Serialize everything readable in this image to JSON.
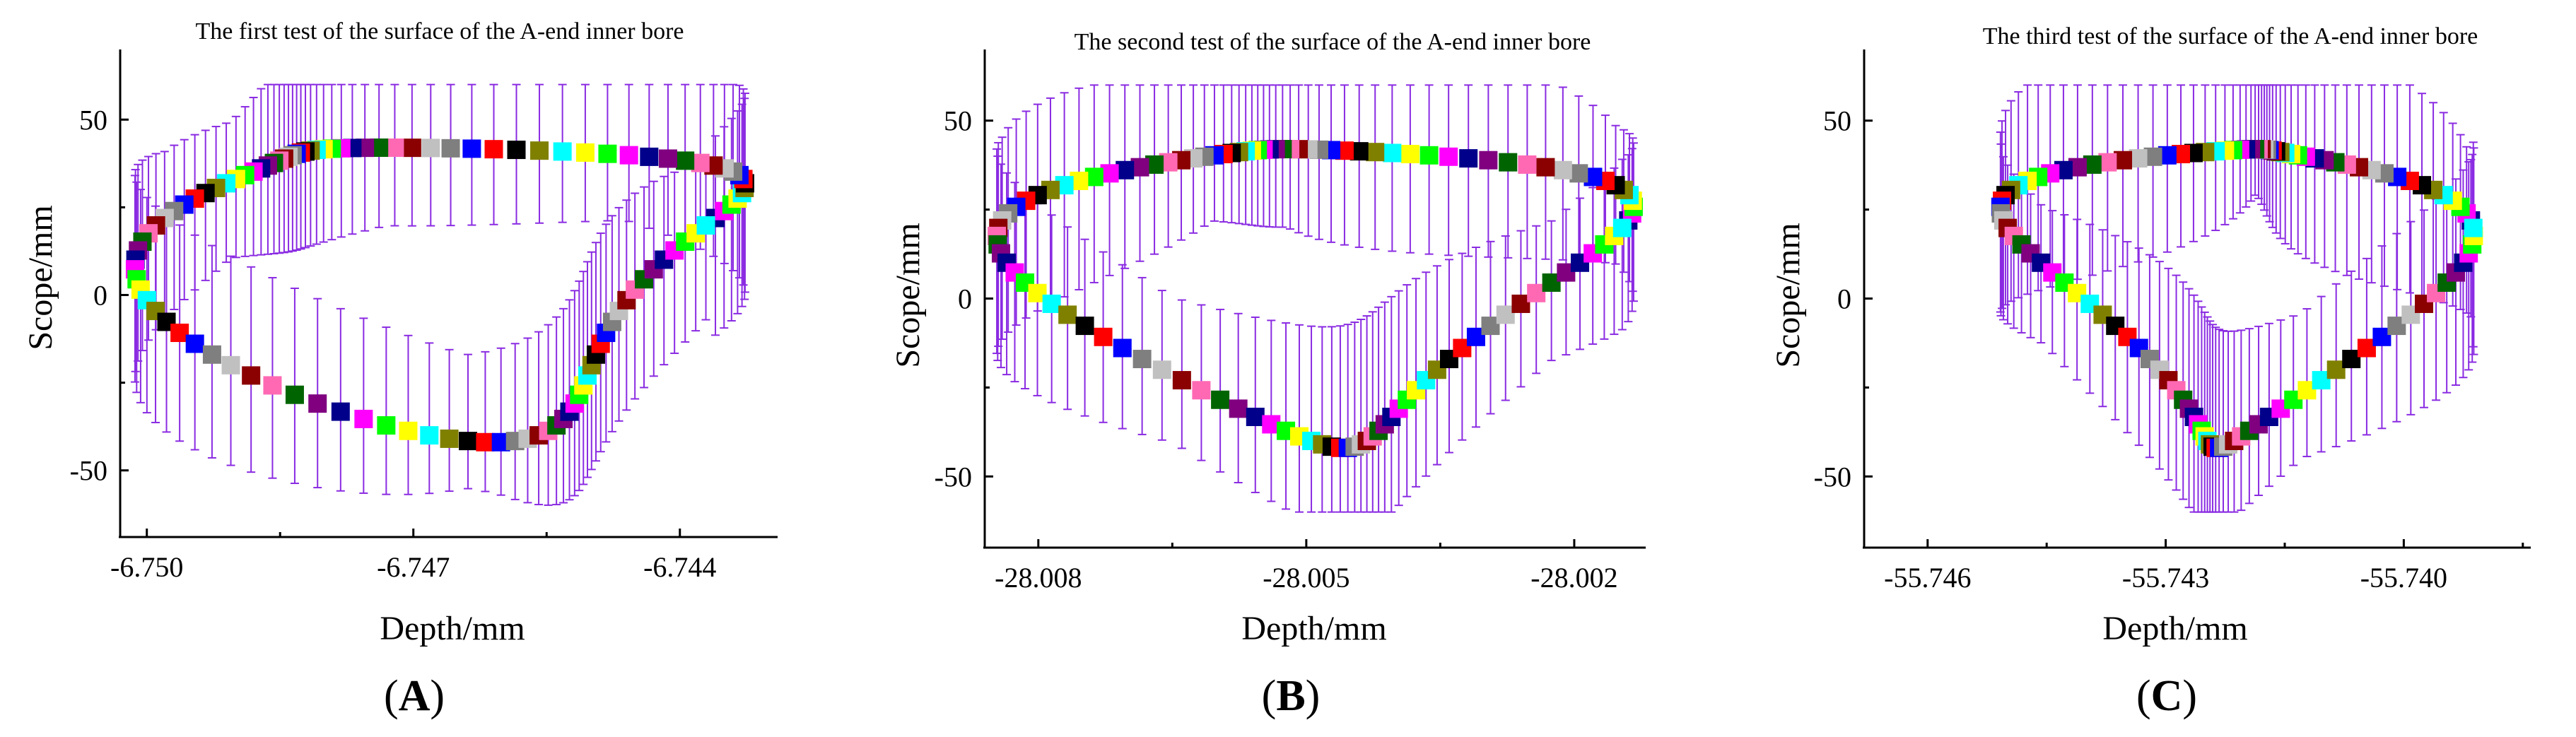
{
  "chart_data": [
    {
      "type": "scatter",
      "panel_label": "A",
      "title": "The first test of the surface of the A-end inner bore",
      "xlabel": "Depth/mm",
      "ylabel": "Scope/mm",
      "xlim": [
        -6.7503,
        -6.7429
      ],
      "ylim": [
        -69,
        70
      ],
      "xticks": [
        {
          "value": -6.75,
          "label": "-6.750"
        },
        {
          "value": -6.747,
          "label": "-6.747"
        },
        {
          "value": -6.744,
          "label": "-6.744"
        }
      ],
      "yticks": [
        {
          "value": 50,
          "label": "50"
        },
        {
          "value": 0,
          "label": "0"
        },
        {
          "value": -50,
          "label": "-50"
        }
      ],
      "ellipse": {
        "x_center": -6.7467,
        "x_radius": 0.0031,
        "y_center": 0,
        "y_radius": 42
      },
      "error_bar": {
        "half_range": 18,
        "cap_upper": 60,
        "cap_lower": -60
      }
    },
    {
      "type": "scatter",
      "panel_label": "B",
      "title": "The second test of the surface of the A-end inner bore",
      "xlabel": "Depth/mm",
      "ylabel": "Scope/mm",
      "xlim": [
        -28.0086,
        -28.0012
      ],
      "ylim": [
        -70,
        70
      ],
      "xticks": [
        {
          "value": -28.008,
          "label": "-28.008"
        },
        {
          "value": -28.005,
          "label": "-28.005"
        },
        {
          "value": -28.002,
          "label": "-28.002"
        }
      ],
      "yticks": [
        {
          "value": 50,
          "label": "50"
        },
        {
          "value": 0,
          "label": "0"
        },
        {
          "value": -50,
          "label": "-50"
        }
      ],
      "ellipse": {
        "x_center": -28.0049,
        "x_radius": 0.003,
        "y_center": 0,
        "y_radius": 42
      },
      "error_bar": {
        "half_range": 18,
        "cap_upper": 60,
        "cap_lower": -60
      }
    },
    {
      "type": "scatter",
      "panel_label": "C",
      "title": "The third test of the surface of the A-end inner bore",
      "xlabel": "Depth/mm",
      "ylabel": "Scope/mm",
      "xlim": [
        -55.7468,
        -55.7384
      ],
      "ylim": [
        -70,
        70
      ],
      "xticks": [
        {
          "value": -55.746,
          "label": "-55.746"
        },
        {
          "value": -55.743,
          "label": "-55.743"
        },
        {
          "value": -55.74,
          "label": "-55.740"
        }
      ],
      "yticks": [
        {
          "value": 50,
          "label": "50"
        },
        {
          "value": 0,
          "label": "0"
        },
        {
          "value": -50,
          "label": "-50"
        }
      ],
      "ellipse": {
        "x_center": -55.7421,
        "x_radius": 0.0024,
        "y_center": 0,
        "y_radius": 42
      },
      "error_bar": {
        "half_range": 18,
        "cap_upper": 60,
        "cap_lower": -60
      }
    }
  ],
  "marker_colors": [
    "#00008b",
    "#ff00ff",
    "#00ff00",
    "#ffff00",
    "#00ffff",
    "#808000",
    "#000000",
    "#ff0000",
    "#0000ff",
    "#7f7f7f",
    "#c0c0c0",
    "#8b0000",
    "#ff69b4",
    "#006400",
    "#800080"
  ],
  "error_bar_color": "#8a2be2"
}
